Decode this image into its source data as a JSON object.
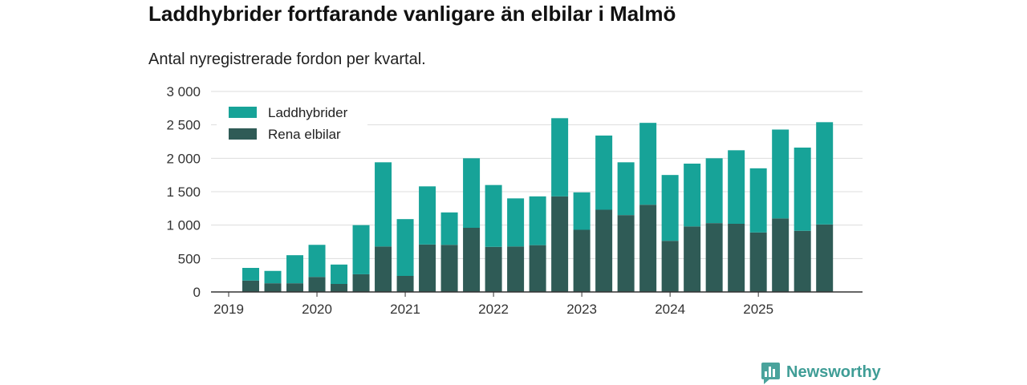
{
  "chart_data": {
    "type": "bar",
    "stacked": true,
    "title": "Laddhybrider fortfarande vanligare än elbilar i Malmö",
    "subtitle": "Antal nyregistrerade fordon per kvartal.",
    "xlabel": "",
    "ylabel": "",
    "x": [
      2019.25,
      2019.5,
      2019.75,
      2020.0,
      2020.25,
      2020.5,
      2020.75,
      2021.0,
      2021.25,
      2021.5,
      2021.75,
      2022.0,
      2022.25,
      2022.5,
      2022.75,
      2023.0,
      2023.25,
      2023.5,
      2023.75,
      2024.0,
      2024.25,
      2024.5,
      2024.75,
      2025.0,
      2025.25,
      2025.5,
      2025.75
    ],
    "series": [
      {
        "name": "Laddhybrider",
        "color": "#17a398",
        "values": [
          190,
          185,
          420,
          480,
          290,
          735,
          1260,
          850,
          870,
          485,
          1040,
          925,
          720,
          730,
          1170,
          560,
          1110,
          790,
          1225,
          985,
          940,
          970,
          1100,
          960,
          1330,
          1245,
          1530
        ]
      },
      {
        "name": "Rena elbilar",
        "color": "#2f5b56",
        "values": [
          170,
          130,
          130,
          225,
          120,
          265,
          680,
          240,
          710,
          705,
          960,
          675,
          680,
          700,
          1430,
          930,
          1230,
          1150,
          1305,
          765,
          980,
          1030,
          1020,
          890,
          1100,
          915,
          1010
        ]
      }
    ],
    "xticks": [
      2019,
      2020,
      2021,
      2022,
      2023,
      2024,
      2025
    ],
    "xticklabels": [
      "2019",
      "2020",
      "2021",
      "2022",
      "2023",
      "2024",
      "2025"
    ],
    "yticks": [
      0,
      500,
      1000,
      1500,
      2000,
      2500,
      3000
    ],
    "yticklabels": [
      "0",
      "500",
      "1 000",
      "1 500",
      "2 000",
      "2 500",
      "3 000"
    ],
    "ylim": [
      0,
      3000
    ],
    "xlim": [
      2018.8,
      2026.18
    ],
    "grid": true,
    "legend": "top-left"
  },
  "brand": {
    "name": "Newsworthy",
    "color": "#3f9d96",
    "icon": "bar-chart-bubble-icon"
  }
}
